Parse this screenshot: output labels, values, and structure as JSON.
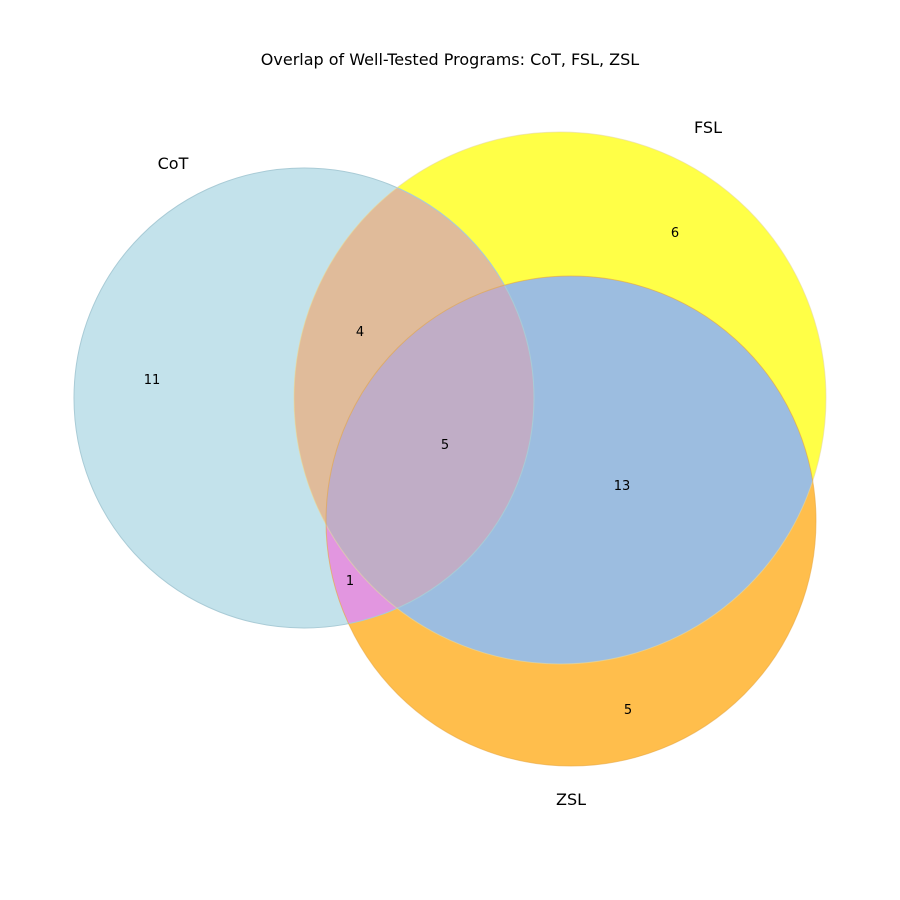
{
  "chart_data": {
    "type": "venn",
    "title": "Overlap of Well-Tested Programs: CoT, FSL, ZSL",
    "sets": [
      {
        "id": "cot",
        "label": "CoT",
        "color": "#add8e6"
      },
      {
        "id": "fsl",
        "label": "FSL",
        "color": "#ffff00"
      },
      {
        "id": "zsl",
        "label": "ZSL",
        "color": "#ffa500"
      }
    ],
    "regions": [
      {
        "id": "cot_only",
        "sets": [
          "CoT"
        ],
        "count": "11",
        "color": "#c3e2eb"
      },
      {
        "id": "fsl_only",
        "sets": [
          "FSL"
        ],
        "count": "6",
        "color": "#ffff47"
      },
      {
        "id": "zsl_only",
        "sets": [
          "ZSL"
        ],
        "count": "5",
        "color": "#ffbe4c"
      },
      {
        "id": "cot_fsl",
        "sets": [
          "CoT",
          "FSL"
        ],
        "count": "4",
        "color": "#e0bb9a"
      },
      {
        "id": "cot_zsl",
        "sets": [
          "CoT",
          "ZSL"
        ],
        "count": "1",
        "color": "#e296e0"
      },
      {
        "id": "fsl_zsl",
        "sets": [
          "FSL",
          "ZSL"
        ],
        "count": "13",
        "color": "#9cbde0"
      },
      {
        "id": "cot_fsl_zsl",
        "sets": [
          "CoT",
          "FSL",
          "ZSL"
        ],
        "count": "5",
        "color": "#c0adc6"
      }
    ]
  }
}
